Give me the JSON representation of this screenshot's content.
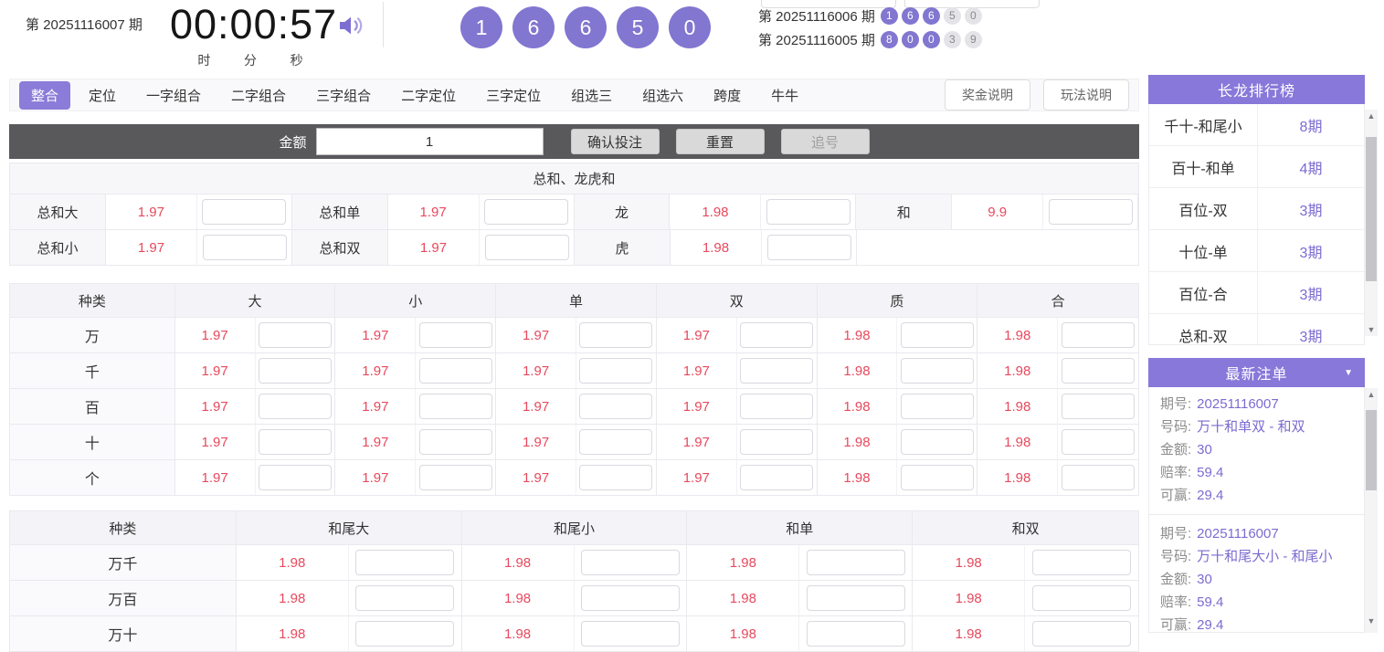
{
  "colors": {
    "accent": "#8878d9",
    "ball_purple": "#8176d0",
    "odds_red": "#e8495d",
    "value_purple": "#7c6bd1"
  },
  "header": {
    "issue": {
      "prefix": "第",
      "number": "20251116007",
      "suffix": "期"
    },
    "timer": {
      "value": "00:00:57",
      "units": [
        "时",
        "分",
        "秒"
      ]
    },
    "current_draw": [
      "1",
      "6",
      "6",
      "5",
      "0"
    ],
    "history": [
      {
        "prefix": "第",
        "number": "20251116006",
        "suffix": "期",
        "balls": [
          "1",
          "6",
          "6",
          "5",
          "0"
        ],
        "highlight_count": 3
      },
      {
        "prefix": "第",
        "number": "20251116005",
        "suffix": "期",
        "balls": [
          "8",
          "0",
          "0",
          "3",
          "9"
        ],
        "highlight_count": 3
      }
    ]
  },
  "nav": {
    "tabs": [
      {
        "label": "整合",
        "active": true
      },
      {
        "label": "定位",
        "active": false
      },
      {
        "label": "一字组合",
        "active": false
      },
      {
        "label": "二字组合",
        "active": false
      },
      {
        "label": "三字组合",
        "active": false
      },
      {
        "label": "二字定位",
        "active": false
      },
      {
        "label": "三字定位",
        "active": false
      },
      {
        "label": "组选三",
        "active": false
      },
      {
        "label": "组选六",
        "active": false
      },
      {
        "label": "跨度",
        "active": false
      },
      {
        "label": "牛牛",
        "active": false
      }
    ],
    "help_buttons": [
      "奖金说明",
      "玩法说明"
    ]
  },
  "bet_bar": {
    "amount_label": "金额",
    "amount_value": "1",
    "confirm_label": "确认投注",
    "reset_label": "重置",
    "chase_label": "追号"
  },
  "sum_section": {
    "title": "总和、龙虎和",
    "rows": [
      [
        {
          "label": "总和大",
          "odds": "1.97"
        },
        {
          "label": "总和单",
          "odds": "1.97"
        },
        {
          "label": "龙",
          "odds": "1.98"
        },
        {
          "label": "和",
          "odds": "9.9"
        }
      ],
      [
        {
          "label": "总和小",
          "odds": "1.97"
        },
        {
          "label": "总和双",
          "odds": "1.97"
        },
        {
          "label": "虎",
          "odds": "1.98"
        },
        null
      ]
    ]
  },
  "position_table": {
    "kind_header": "种类",
    "columns": [
      "大",
      "小",
      "单",
      "双",
      "质",
      "合"
    ],
    "rows": [
      {
        "kind": "万",
        "odds": [
          "1.97",
          "1.97",
          "1.97",
          "1.97",
          "1.98",
          "1.98"
        ]
      },
      {
        "kind": "千",
        "odds": [
          "1.97",
          "1.97",
          "1.97",
          "1.97",
          "1.98",
          "1.98"
        ]
      },
      {
        "kind": "百",
        "odds": [
          "1.97",
          "1.97",
          "1.97",
          "1.97",
          "1.98",
          "1.98"
        ]
      },
      {
        "kind": "十",
        "odds": [
          "1.97",
          "1.97",
          "1.97",
          "1.97",
          "1.98",
          "1.98"
        ]
      },
      {
        "kind": "个",
        "odds": [
          "1.97",
          "1.97",
          "1.97",
          "1.97",
          "1.98",
          "1.98"
        ]
      }
    ]
  },
  "tail_table": {
    "kind_header": "种类",
    "columns": [
      "和尾大",
      "和尾小",
      "和单",
      "和双"
    ],
    "rows": [
      {
        "kind": "万千",
        "odds": [
          "1.98",
          "1.98",
          "1.98",
          "1.98"
        ]
      },
      {
        "kind": "万百",
        "odds": [
          "1.98",
          "1.98",
          "1.98",
          "1.98"
        ]
      },
      {
        "kind": "万十",
        "odds": [
          "1.98",
          "1.98",
          "1.98",
          "1.98"
        ]
      }
    ]
  },
  "dragon_panel": {
    "title": "长龙排行榜",
    "items": [
      {
        "name": "千十-和尾小",
        "count": "8期"
      },
      {
        "name": "百十-和单",
        "count": "4期"
      },
      {
        "name": "百位-双",
        "count": "3期"
      },
      {
        "name": "十位-单",
        "count": "3期"
      },
      {
        "name": "百位-合",
        "count": "3期"
      },
      {
        "name": "总和-双",
        "count": "3期"
      }
    ]
  },
  "orders_panel": {
    "title": "最新注单",
    "field_labels": {
      "issue": "期号:",
      "code": "号码:",
      "amount": "金额:",
      "odds": "赔率:",
      "win": "可赢:"
    },
    "entries": [
      {
        "issue": "20251116007",
        "code": "万十和单双 - 和双",
        "amount": "30",
        "odds": "59.4",
        "win": "29.4"
      },
      {
        "issue": "20251116007",
        "code": "万十和尾大小 - 和尾小",
        "amount": "30",
        "odds": "59.4",
        "win": "29.4"
      }
    ]
  }
}
